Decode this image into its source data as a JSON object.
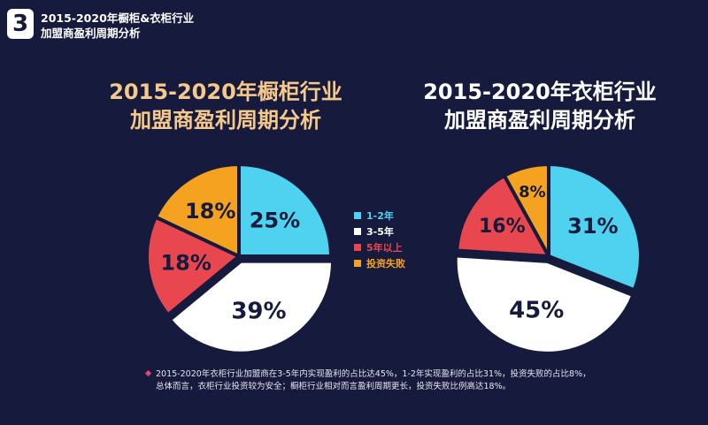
{
  "header": {
    "badge": "3",
    "line1": "2015-2020年橱柜&衣柜行业",
    "line2": "加盟商盈利周期分析"
  },
  "charts": {
    "left": {
      "title1": "2015-2020年橱柜行业",
      "title2": "加盟商盈利周期分析"
    },
    "right": {
      "title1": "2015-2020年衣柜行业",
      "title2": "加盟商盈利周期分析"
    }
  },
  "legend": [
    {
      "label": "1-2年",
      "color": "#4fd1f0"
    },
    {
      "label": "3-5年",
      "color": "#ffffff"
    },
    {
      "label": "5年以上",
      "color": "#e8474f"
    },
    {
      "label": "投资失败",
      "color": "#f4a21f"
    }
  ],
  "footnote": {
    "line1": "2015-2020年衣柜行业加盟商在3-5年内实现盈利的占比达45%，1-2年实现盈利的占比31%，投资失败的占比8%，",
    "line2": "总体而言，衣柜行业投资较为安全；橱柜行业相对而言盈利周期更长，投资失败比例高达18%。"
  },
  "chart_data": [
    {
      "type": "pie",
      "title": "2015-2020年橱柜行业加盟商盈利周期分析",
      "categories": [
        "1-2年",
        "3-5年",
        "5年以上",
        "投资失败"
      ],
      "values": [
        25,
        39,
        18,
        18
      ],
      "value_labels": [
        "25%",
        "39%",
        "18%",
        "18%"
      ],
      "colors": [
        "#4fd1f0",
        "#ffffff",
        "#e8474f",
        "#f4a21f"
      ],
      "legend_position": "center"
    },
    {
      "type": "pie",
      "title": "2015-2020年衣柜行业加盟商盈利周期分析",
      "categories": [
        "1-2年",
        "3-5年",
        "5年以上",
        "投资失败"
      ],
      "values": [
        31,
        45,
        16,
        8
      ],
      "value_labels": [
        "31%",
        "45%",
        "16%",
        "8%"
      ],
      "colors": [
        "#4fd1f0",
        "#ffffff",
        "#e8474f",
        "#f4a21f"
      ],
      "legend_position": "center"
    }
  ]
}
